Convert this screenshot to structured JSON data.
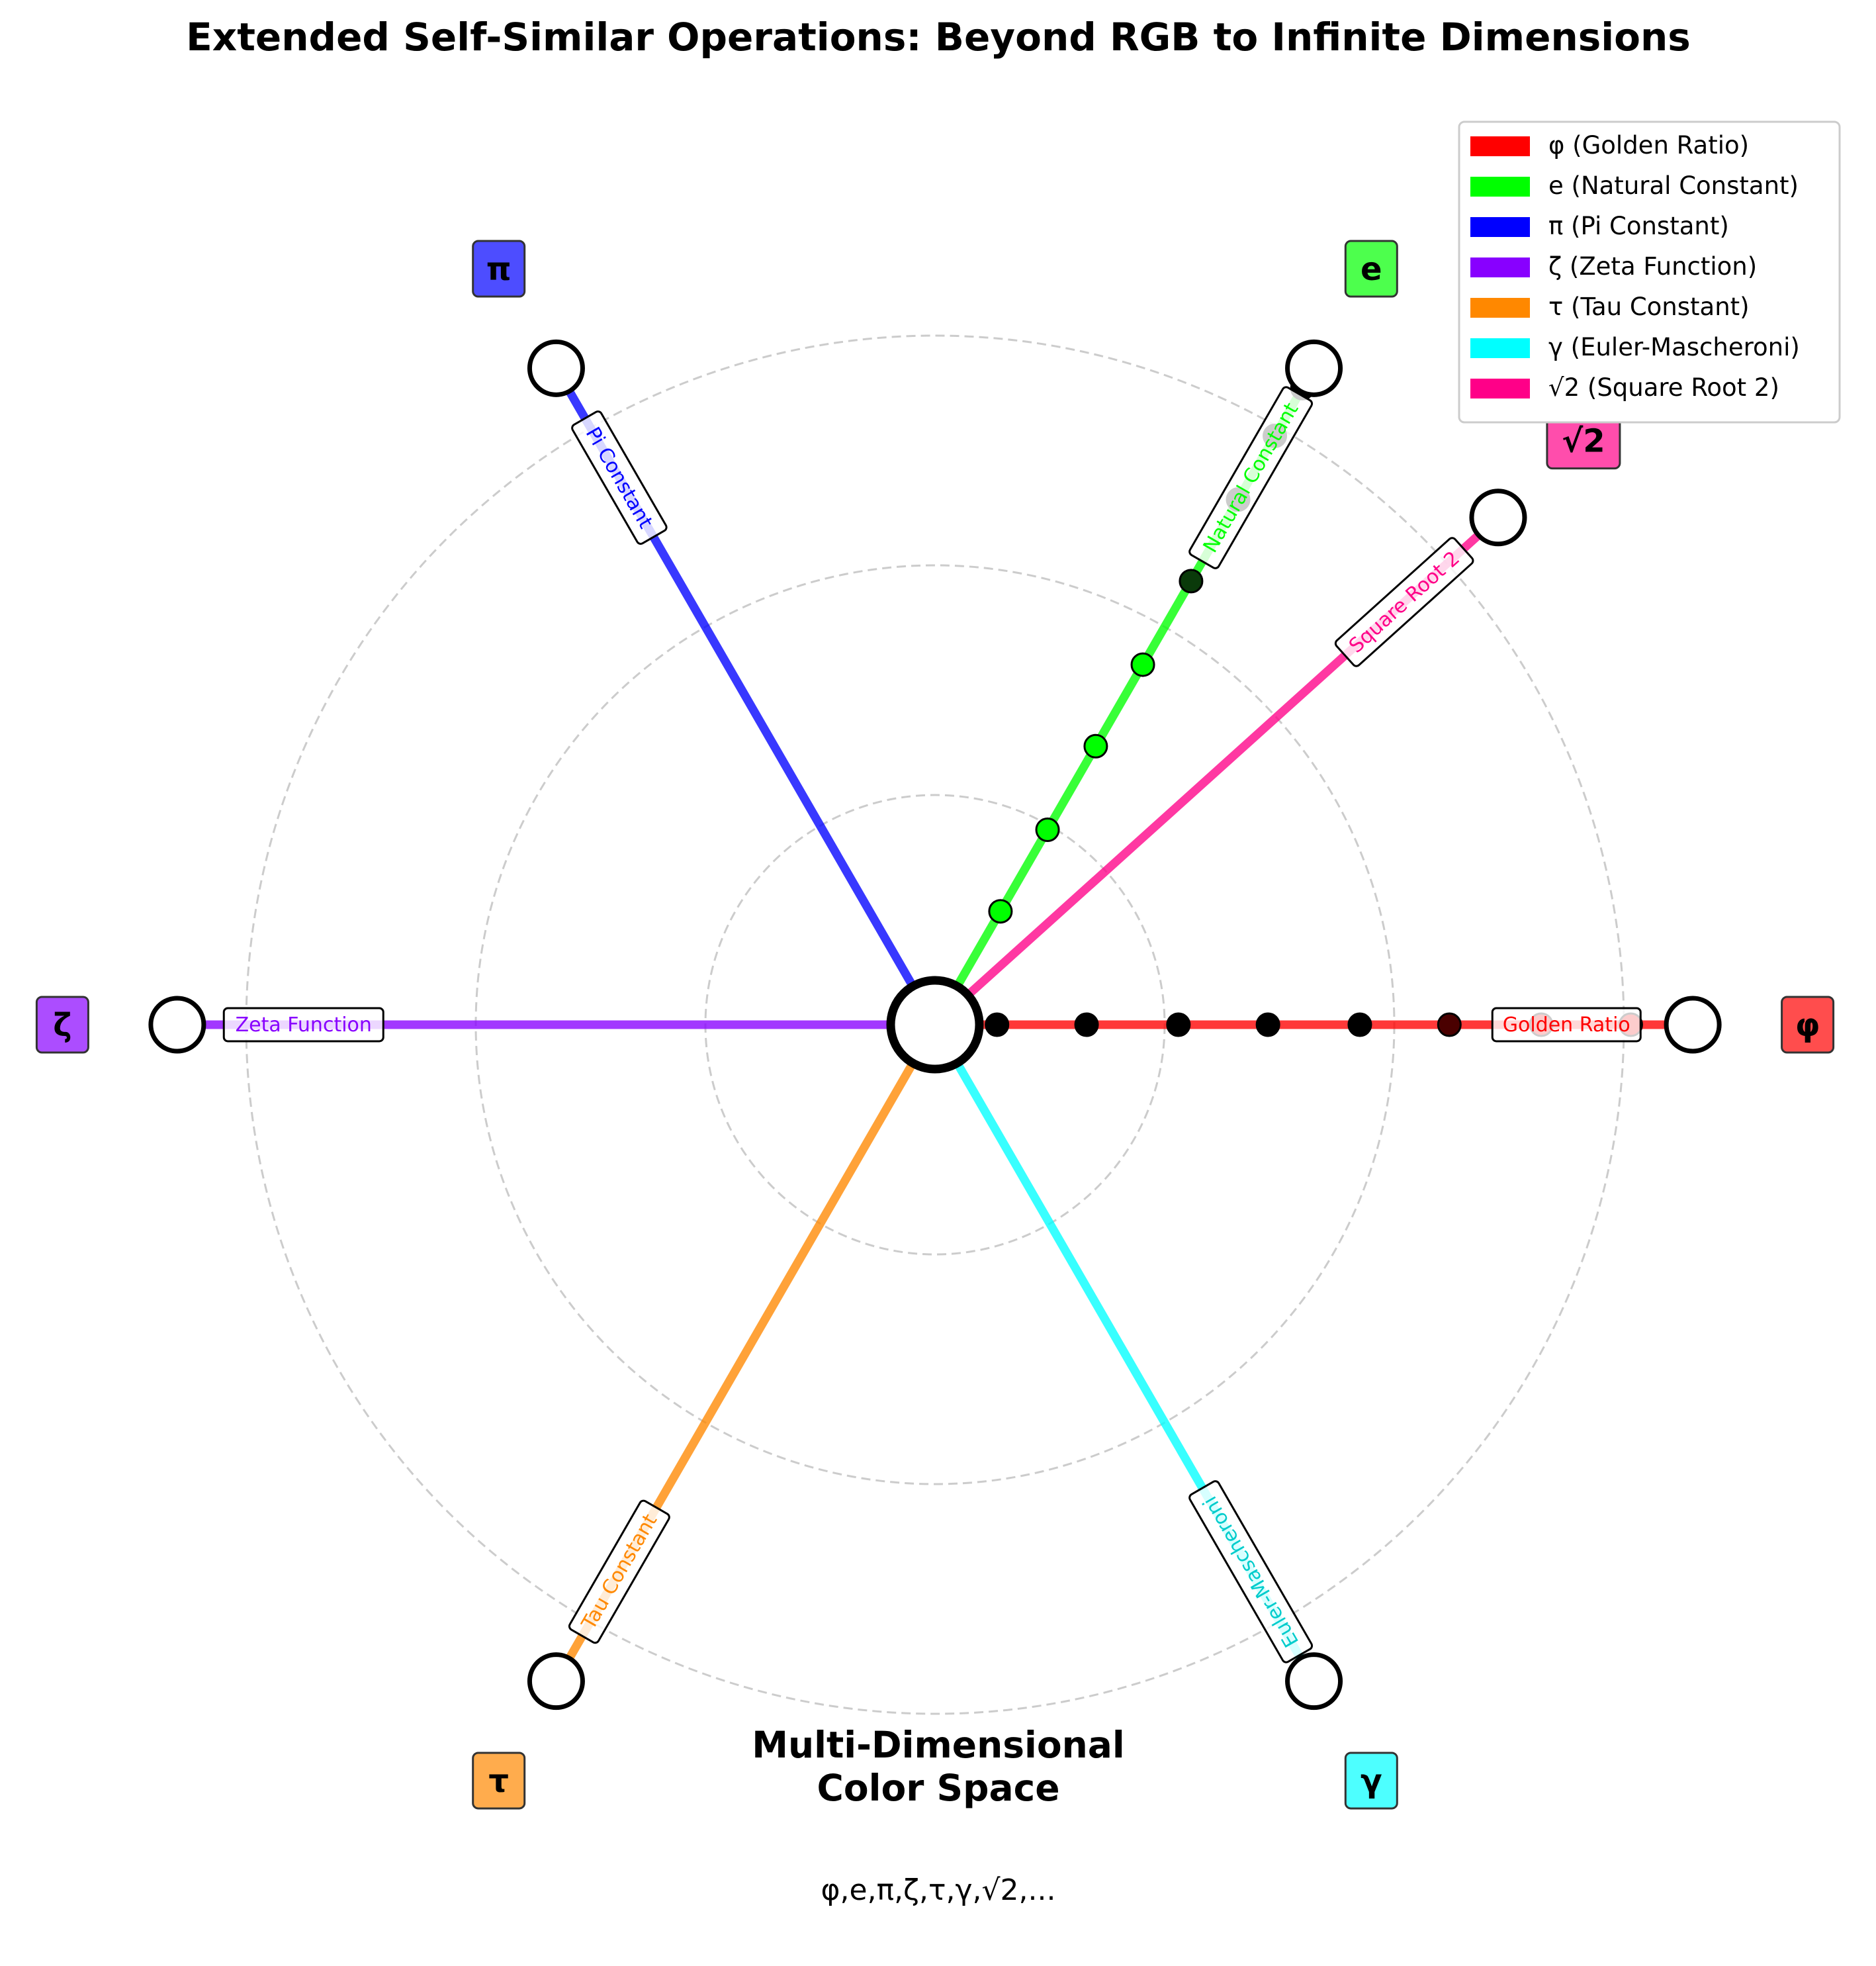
{
  "title": "Extended Self-Similar Operations: Beyond RGB to Infinite Dimensions",
  "center": {
    "title_line1": "Multi-Dimensional",
    "title_line2": "Color Space",
    "subtitle": "φ,e,π,ζ,τ,γ,√2,..."
  },
  "chart_data": {
    "type": "radial",
    "grid": true,
    "rings": [
      1,
      2,
      3
    ],
    "legend_position": "top-right",
    "spokes": [
      {
        "symbol": "φ",
        "legend": "φ (Golden Ratio)",
        "label": "Golden Ratio",
        "color": "#ff0000",
        "angle_deg": 0,
        "length": 3.3,
        "dots": [
          0.27,
          0.66,
          1.06,
          1.45,
          1.85,
          2.24,
          2.64,
          3.03
        ]
      },
      {
        "symbol": "e",
        "legend": "e (Natural Constant)",
        "label": "Natural Constant",
        "color": "#00ff00",
        "angle_deg": 60,
        "length": 3.3,
        "dots": [
          0.15,
          0.57,
          0.98,
          1.4,
          1.81,
          2.23,
          2.64,
          2.96,
          3.2
        ]
      },
      {
        "symbol": "π",
        "legend": "π (Pi Constant)",
        "label": "Pi Constant",
        "color": "#0000ff",
        "angle_deg": 120,
        "length": 3.3,
        "dots": []
      },
      {
        "symbol": "ζ",
        "legend": "ζ (Zeta Function)",
        "label": "Zeta Function",
        "color": "#8800ff",
        "angle_deg": 180,
        "length": 3.3,
        "dots": []
      },
      {
        "symbol": "τ",
        "legend": "τ (Tau Constant)",
        "label": "Tau Constant",
        "color": "#ff8800",
        "angle_deg": 240,
        "length": 3.3,
        "dots": []
      },
      {
        "symbol": "γ",
        "legend": "γ (Euler-Mascheroni)",
        "label": "Euler-Mascheroni",
        "color": "#00ffff",
        "angle_deg": 300,
        "length": 3.3,
        "dots": []
      },
      {
        "symbol": "√2",
        "legend": "√2 (Square Root 2)",
        "label": "Square Root 2",
        "color": "#ff0088",
        "angle_deg": 42,
        "length": 3.3,
        "dots": []
      }
    ]
  }
}
